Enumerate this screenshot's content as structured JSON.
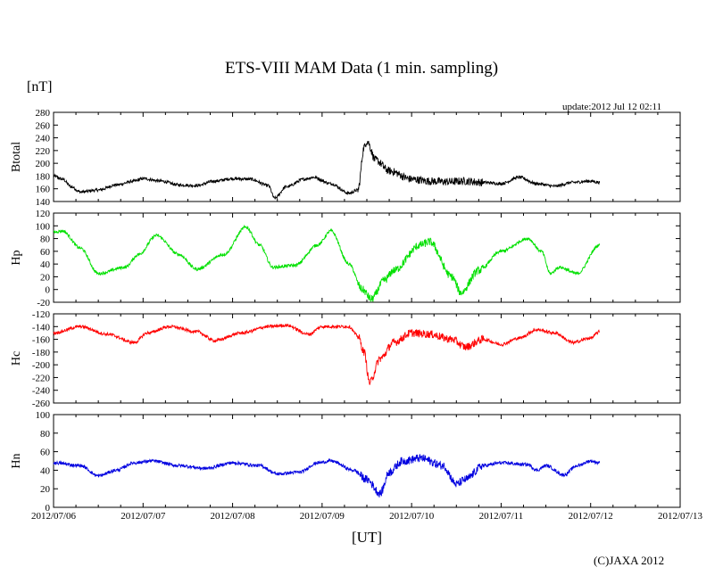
{
  "header": {
    "title": "ETS-VIII MAM Data (1 min. sampling)",
    "y_unit": "[nT]",
    "x_unit": "[UT]",
    "update": "update:2012 Jul 12 02:11",
    "copyright": "(C)JAXA 2012"
  },
  "chart_data": {
    "type": "line",
    "title": "ETS-VIII MAM Data (1 min. sampling)",
    "xlabel": "[UT]",
    "ylabel": "[nT]",
    "x_units": "days since 2012/07/06 00:00 UT",
    "xlim": [
      0,
      7
    ],
    "x_ticks": [
      0,
      1,
      2,
      3,
      4,
      5,
      6,
      7
    ],
    "x_tick_labels": [
      "2012/07/06",
      "2012/07/07",
      "2012/07/08",
      "2012/07/09",
      "2012/07/10",
      "2012/07/11",
      "2012/07/12",
      "2012/07/13"
    ],
    "series": [
      {
        "name": "Btotal",
        "color": "#000000",
        "ylim": [
          140,
          280
        ],
        "yticks": [
          140,
          160,
          180,
          200,
          220,
          240,
          260,
          280
        ],
        "x": [
          0,
          0.1,
          0.2,
          0.3,
          0.5,
          0.7,
          0.9,
          1.0,
          1.2,
          1.4,
          1.6,
          1.8,
          2.0,
          2.2,
          2.4,
          2.47,
          2.6,
          2.8,
          2.9,
          3.1,
          3.3,
          3.4,
          3.47,
          3.5,
          3.6,
          3.75,
          4.0,
          4.2,
          4.4,
          4.6,
          4.8,
          5.0,
          5.2,
          5.4,
          5.6,
          5.8,
          6.0,
          6.1
        ],
        "values": [
          180,
          175,
          163,
          155,
          158,
          166,
          172,
          176,
          172,
          166,
          165,
          172,
          176,
          175,
          165,
          145,
          163,
          175,
          178,
          168,
          153,
          158,
          225,
          235,
          205,
          188,
          175,
          172,
          171,
          172,
          170,
          168,
          178,
          168,
          164,
          170,
          172,
          170
        ]
      },
      {
        "name": "Hp",
        "color": "#00e000",
        "ylim": [
          -20,
          120
        ],
        "yticks": [
          -20,
          0,
          20,
          40,
          60,
          80,
          100,
          120
        ],
        "x": [
          0,
          0.1,
          0.3,
          0.5,
          0.8,
          0.95,
          1.15,
          1.4,
          1.6,
          1.9,
          2.15,
          2.3,
          2.45,
          2.7,
          2.95,
          3.1,
          3.3,
          3.45,
          3.55,
          3.7,
          3.8,
          4.1,
          4.2,
          4.45,
          4.55,
          4.75,
          5.0,
          5.3,
          5.45,
          5.55,
          5.65,
          5.85,
          6.1
        ],
        "values": [
          90,
          92,
          65,
          25,
          35,
          55,
          85,
          55,
          32,
          55,
          98,
          70,
          35,
          38,
          70,
          92,
          40,
          0,
          -15,
          15,
          30,
          70,
          75,
          20,
          -5,
          30,
          60,
          80,
          60,
          25,
          35,
          25,
          70
        ]
      },
      {
        "name": "Hc",
        "color": "#ff0000",
        "ylim": [
          -260,
          -120
        ],
        "yticks": [
          -260,
          -240,
          -220,
          -200,
          -180,
          -160,
          -140,
          -120
        ],
        "x": [
          0,
          0.3,
          0.6,
          0.9,
          1.05,
          1.3,
          1.6,
          1.8,
          2.1,
          2.4,
          2.6,
          2.85,
          3.0,
          3.3,
          3.4,
          3.47,
          3.53,
          3.65,
          3.8,
          4.0,
          4.2,
          4.45,
          4.6,
          4.8,
          5.0,
          5.2,
          5.4,
          5.6,
          5.8,
          6.0,
          6.1
        ],
        "values": [
          -150,
          -140,
          -152,
          -165,
          -150,
          -140,
          -148,
          -162,
          -150,
          -140,
          -138,
          -152,
          -140,
          -140,
          -155,
          -180,
          -228,
          -190,
          -165,
          -150,
          -152,
          -160,
          -172,
          -160,
          -168,
          -158,
          -145,
          -150,
          -165,
          -158,
          -148
        ]
      },
      {
        "name": "Hn",
        "color": "#0000e0",
        "ylim": [
          0,
          100
        ],
        "yticks": [
          0,
          20,
          40,
          60,
          80,
          100
        ],
        "x": [
          0,
          0.3,
          0.5,
          0.7,
          0.9,
          1.1,
          1.4,
          1.7,
          2.0,
          2.3,
          2.5,
          2.75,
          2.95,
          3.1,
          3.35,
          3.5,
          3.65,
          3.75,
          3.9,
          4.1,
          4.35,
          4.5,
          4.6,
          4.8,
          5.0,
          5.3,
          5.4,
          5.5,
          5.7,
          5.85,
          6.0,
          6.1
        ],
        "values": [
          48,
          45,
          34,
          40,
          48,
          50,
          45,
          42,
          48,
          45,
          36,
          38,
          48,
          50,
          40,
          30,
          15,
          38,
          50,
          53,
          45,
          25,
          30,
          45,
          48,
          46,
          40,
          45,
          35,
          45,
          50,
          48
        ]
      }
    ]
  }
}
